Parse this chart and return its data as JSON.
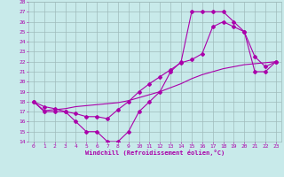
{
  "xlabel": "Windchill (Refroidissement éolien,°C)",
  "xlim": [
    -0.5,
    23.5
  ],
  "ylim": [
    14,
    28
  ],
  "xticks": [
    0,
    1,
    2,
    3,
    4,
    5,
    6,
    7,
    8,
    9,
    10,
    11,
    12,
    13,
    14,
    15,
    16,
    17,
    18,
    19,
    20,
    21,
    22,
    23
  ],
  "yticks": [
    14,
    15,
    16,
    17,
    18,
    19,
    20,
    21,
    22,
    23,
    24,
    25,
    26,
    27,
    28
  ],
  "bg_color": "#c8eaea",
  "grid_color": "#9fbcbc",
  "line_color": "#aa00aa",
  "line1_x": [
    0,
    1,
    2,
    3,
    4,
    5,
    6,
    7,
    8,
    9,
    10,
    11,
    12,
    13,
    14,
    15,
    16,
    17,
    18,
    19,
    20,
    21,
    22,
    23
  ],
  "line1_y": [
    18,
    17,
    17,
    17,
    16,
    15,
    15,
    14,
    14,
    15,
    17,
    18,
    19,
    21,
    22,
    27,
    27,
    27,
    27,
    26,
    25,
    21,
    21,
    22
  ],
  "line2_x": [
    0,
    1,
    2,
    3,
    4,
    5,
    6,
    7,
    8,
    9,
    10,
    11,
    12,
    13,
    14,
    15,
    16,
    17,
    18,
    19,
    20,
    21,
    22,
    23
  ],
  "line2_y": [
    18,
    17.1,
    17.2,
    17.3,
    17.5,
    17.6,
    17.7,
    17.8,
    17.9,
    18.1,
    18.4,
    18.7,
    19.0,
    19.4,
    19.8,
    20.3,
    20.7,
    21.0,
    21.3,
    21.5,
    21.7,
    21.8,
    21.9,
    22.0
  ],
  "line3_x": [
    0,
    1,
    2,
    3,
    4,
    5,
    6,
    7,
    8,
    9,
    10,
    11,
    12,
    13,
    14,
    15,
    16,
    17,
    18,
    19,
    20,
    21,
    22,
    23
  ],
  "line3_y": [
    18,
    17.5,
    17.3,
    17.0,
    16.8,
    16.5,
    16.5,
    16.3,
    17.2,
    18.0,
    19.0,
    19.8,
    20.5,
    21.2,
    21.9,
    22.2,
    22.8,
    25.5,
    26.0,
    25.5,
    25.0,
    22.5,
    21.5,
    22.0
  ]
}
